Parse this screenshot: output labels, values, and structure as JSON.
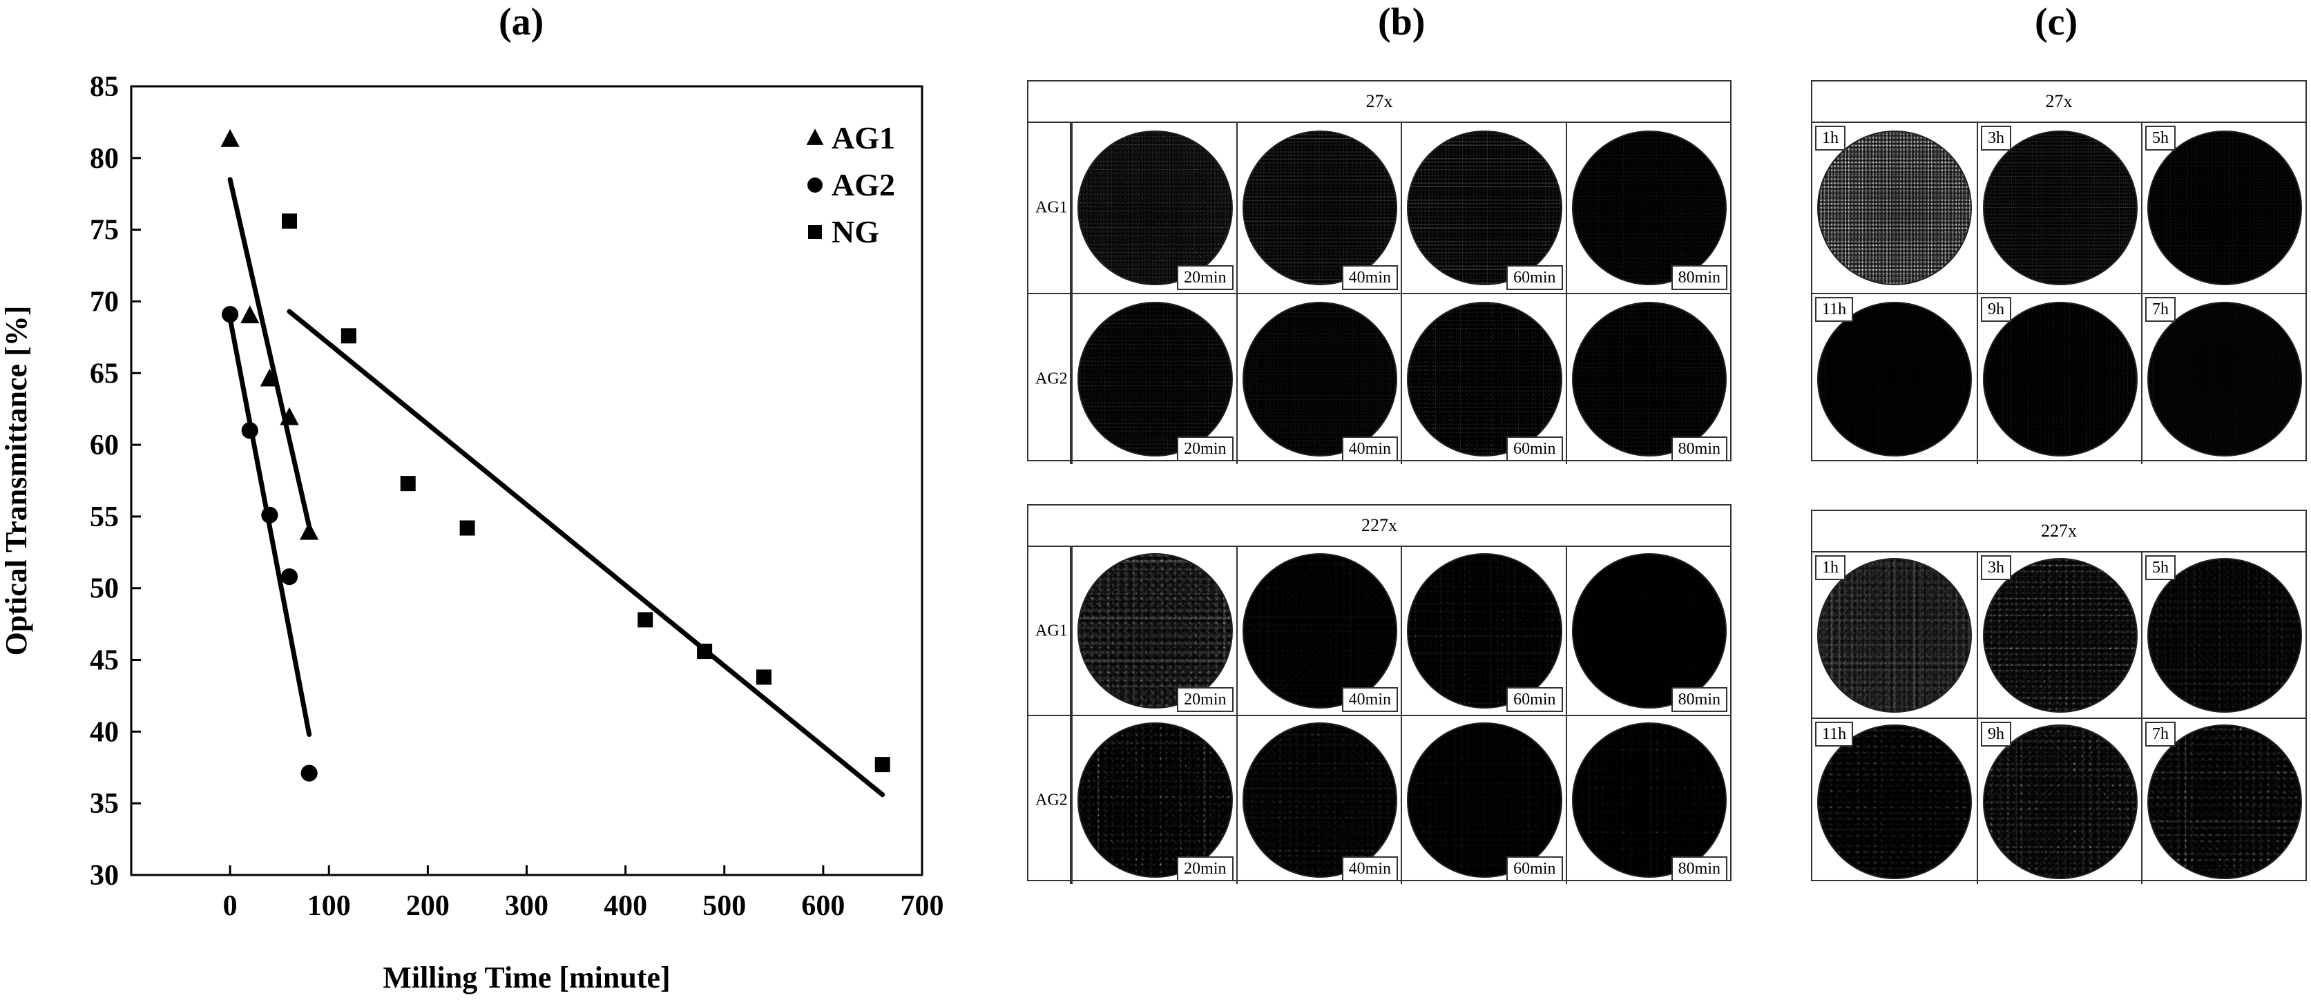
{
  "panels": {
    "a": "(a)",
    "b": "(b)",
    "c": "(c)"
  },
  "chart_data": {
    "type": "scatter",
    "title": "",
    "xlabel": "Milling Time [minute]",
    "ylabel": "Optical Transmittance [%]",
    "xlim": [
      -100,
      700
    ],
    "ylim": [
      30,
      85
    ],
    "xticks": [
      0,
      100,
      200,
      300,
      400,
      500,
      600,
      700
    ],
    "yticks": [
      30,
      35,
      40,
      45,
      50,
      55,
      60,
      65,
      70,
      75,
      80,
      85
    ],
    "legend_position": "top-right",
    "series": [
      {
        "name": "AG1",
        "marker": "triangle",
        "x": [
          0,
          20,
          40,
          60,
          80
        ],
        "y": [
          81.3,
          69.0,
          64.6,
          61.9,
          53.9
        ],
        "fit": {
          "x": [
            0,
            80
          ],
          "y": [
            78.5,
            54.3
          ]
        }
      },
      {
        "name": "AG2",
        "marker": "circle",
        "x": [
          0,
          20,
          40,
          60,
          80
        ],
        "y": [
          69.1,
          61.0,
          55.1,
          50.8,
          37.1
        ],
        "fit": {
          "x": [
            0,
            80
          ],
          "y": [
            68.8,
            39.8
          ]
        }
      },
      {
        "name": "NG",
        "marker": "square",
        "x": [
          60,
          120,
          180,
          240,
          420,
          480,
          540,
          660
        ],
        "y": [
          75.6,
          67.6,
          57.3,
          54.2,
          47.8,
          45.6,
          43.8,
          37.7
        ],
        "fit": {
          "x": [
            60,
            660
          ],
          "y": [
            69.3,
            35.6
          ]
        }
      }
    ]
  },
  "panel_b": {
    "top": {
      "title": "27x",
      "rows": [
        {
          "label": "AG1",
          "cells": [
            "20min",
            "40min",
            "60min",
            "80min"
          ],
          "density": [
            0.55,
            0.6,
            0.62,
            0.6
          ]
        },
        {
          "label": "AG2",
          "cells": [
            "20min",
            "40min",
            "60min",
            "80min"
          ],
          "density": [
            0.6,
            0.66,
            0.7,
            0.74
          ]
        }
      ]
    },
    "bottom": {
      "title": "227x",
      "rows": [
        {
          "label": "AG1",
          "cells": [
            "20min",
            "40min",
            "60min",
            "80min"
          ],
          "density": [
            0.4,
            0.48,
            0.55,
            0.58
          ]
        },
        {
          "label": "AG2",
          "cells": [
            "20min",
            "40min",
            "60min",
            "80min"
          ],
          "density": [
            0.55,
            0.5,
            0.52,
            0.65
          ]
        }
      ]
    }
  },
  "panel_c": {
    "top": {
      "title": "27x",
      "rows": [
        {
          "cells": [
            "1h",
            "3h",
            "5h"
          ],
          "density": [
            0.45,
            0.55,
            0.7
          ]
        },
        {
          "cells": [
            "11h",
            "9h",
            "7h"
          ],
          "density": [
            0.78,
            0.72,
            0.66
          ]
        }
      ]
    },
    "bottom": {
      "title": "227x",
      "rows": [
        {
          "cells": [
            "1h",
            "3h",
            "5h"
          ],
          "density": [
            0.3,
            0.4,
            0.5
          ]
        },
        {
          "cells": [
            "11h",
            "9h",
            "7h"
          ],
          "density": [
            0.58,
            0.55,
            0.5
          ]
        }
      ]
    }
  }
}
